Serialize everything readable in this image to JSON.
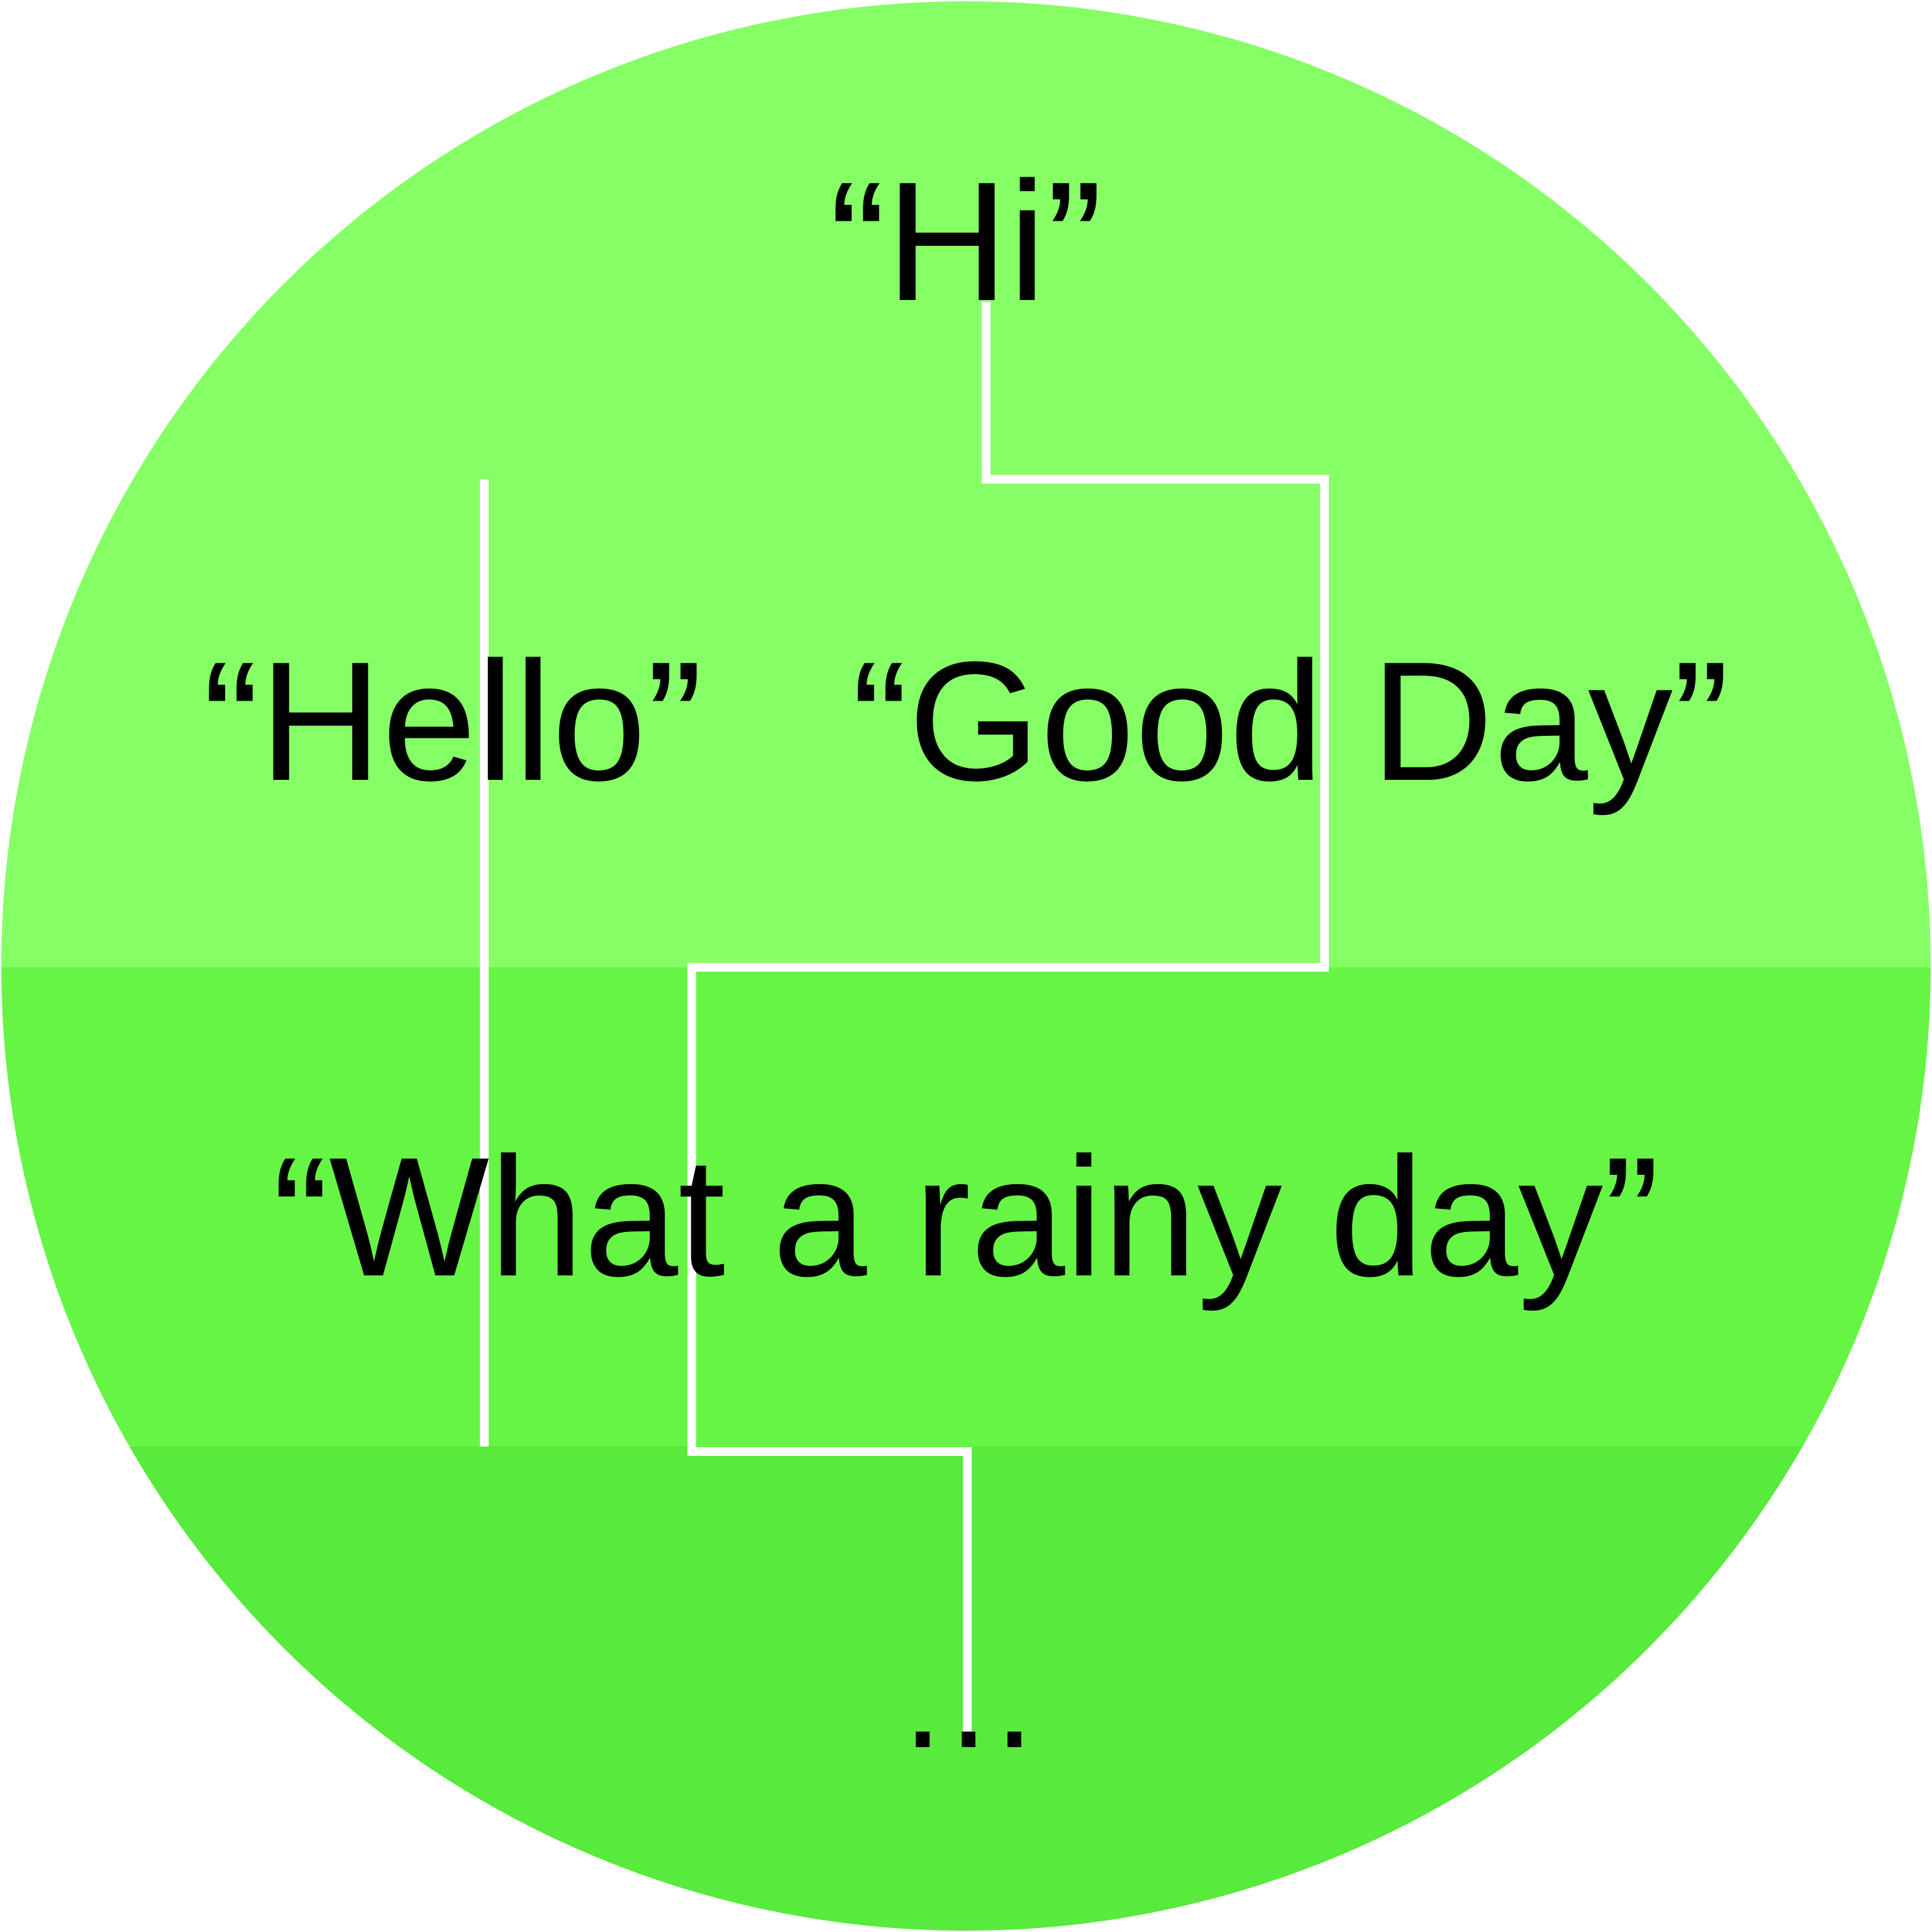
{
  "colors": {
    "band_top": "#86ff66",
    "band_middle": "#66f545",
    "band_bottom": "#58ea3c",
    "connector": "#ffffff",
    "text": "#000000"
  },
  "diagram": {
    "phrases": [
      {
        "id": "hi",
        "text": "“Hi”"
      },
      {
        "id": "hello",
        "text": "“Hello”"
      },
      {
        "id": "good-day",
        "text": "“Good Day”"
      },
      {
        "id": "rainy-day",
        "text": "“What a rainy day”"
      }
    ],
    "continuation": "…"
  }
}
